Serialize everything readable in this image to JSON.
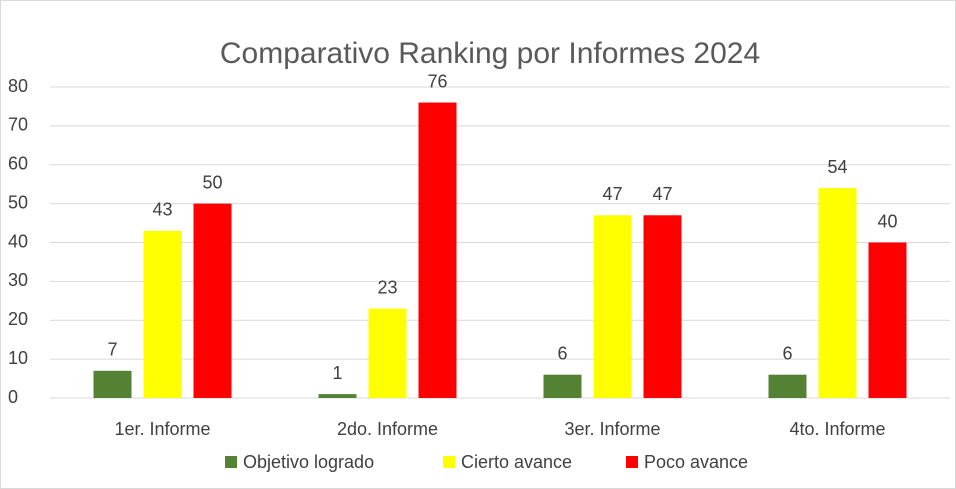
{
  "chart_data": {
    "type": "bar",
    "title": "Comparativo Ranking por Informes 2024",
    "categories": [
      "1er. Informe",
      "2do. Informe",
      "3er. Informe",
      "4to. Informe"
    ],
    "series": [
      {
        "name": "Objetivo logrado",
        "color": "#548235",
        "values": [
          7,
          1,
          6,
          6
        ]
      },
      {
        "name": "Cierto avance",
        "color": "#ffff00",
        "values": [
          43,
          23,
          47,
          54
        ]
      },
      {
        "name": "Poco avance",
        "color": "#ff0000",
        "values": [
          50,
          76,
          47,
          40
        ]
      }
    ],
    "ylim": [
      0,
      80
    ],
    "yticks": [
      0,
      10,
      20,
      30,
      40,
      50,
      60,
      70,
      80
    ],
    "grid": true,
    "legend": "bottom"
  }
}
